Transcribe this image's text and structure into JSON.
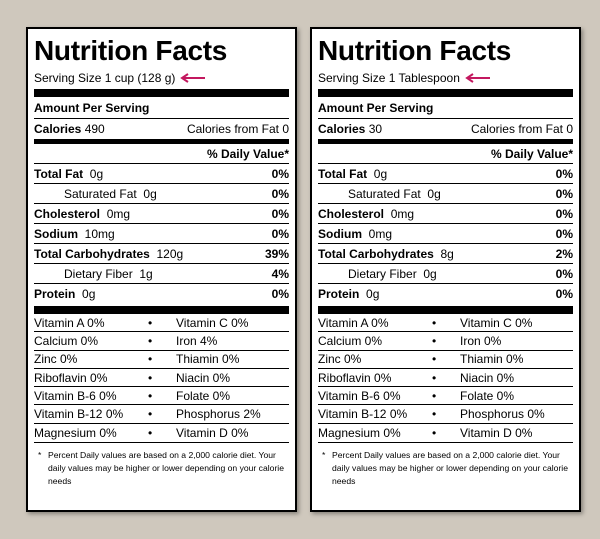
{
  "colors": {
    "arrow": "#c3185f",
    "background": "#cfc8bd"
  },
  "labels": [
    {
      "title": "Nutrition Facts",
      "serving_size": "Serving Size 1 cup (128 g)",
      "amount_per_serving": "Amount Per Serving",
      "calories_label": "Calories",
      "calories_value": "490",
      "calories_from_fat": "Calories from Fat 0",
      "daily_value_header": "% Daily Value*",
      "nutrients": [
        {
          "name": "Total Fat",
          "amount": "0g",
          "percent": "0%",
          "bold": true
        },
        {
          "name": "Saturated Fat",
          "amount": "0g",
          "percent": "0%",
          "bold": false
        },
        {
          "name": "Cholesterol",
          "amount": "0mg",
          "percent": "0%",
          "bold": true
        },
        {
          "name": "Sodium",
          "amount": "10mg",
          "percent": "0%",
          "bold": true
        },
        {
          "name": "Total Carbohydrates",
          "amount": "120g",
          "percent": "39%",
          "bold": true
        },
        {
          "name": "Dietary Fiber",
          "amount": "1g",
          "percent": "4%",
          "bold": false
        },
        {
          "name": "Protein",
          "amount": "0g",
          "percent": "0%",
          "bold": true
        }
      ],
      "vitamins": [
        {
          "left": "Vitamin A  0%",
          "right": "Vitamin C  0%"
        },
        {
          "left": "Calcium  0%",
          "right": "Iron  4%"
        },
        {
          "left": "Zinc  0%",
          "right": "Thiamin  0%"
        },
        {
          "left": "Riboflavin  0%",
          "right": "Niacin  0%"
        },
        {
          "left": "Vitamin B-6  0%",
          "right": "Folate  0%"
        },
        {
          "left": "Vitamin B-12  0%",
          "right": "Phosphorus  2%"
        },
        {
          "left": "Magnesium  0%",
          "right": "Vitamin D  0%"
        }
      ],
      "bullet": "•",
      "footnote_asterisk": "*",
      "footnote": "Percent Daily values are based on a 2,000 calorie diet.  Your daily values may be higher or lower depending on your calorie needs"
    },
    {
      "title": "Nutrition Facts",
      "serving_size": "Serving Size 1 Tablespoon",
      "amount_per_serving": "Amount Per Serving",
      "calories_label": "Calories",
      "calories_value": "30",
      "calories_from_fat": "Calories from Fat 0",
      "daily_value_header": "% Daily Value*",
      "nutrients": [
        {
          "name": "Total Fat",
          "amount": "0g",
          "percent": "0%",
          "bold": true
        },
        {
          "name": "Saturated Fat",
          "amount": "0g",
          "percent": "0%",
          "bold": false
        },
        {
          "name": "Cholesterol",
          "amount": "0mg",
          "percent": "0%",
          "bold": true
        },
        {
          "name": "Sodium",
          "amount": "0mg",
          "percent": "0%",
          "bold": true
        },
        {
          "name": "Total Carbohydrates",
          "amount": "8g",
          "percent": "2%",
          "bold": true
        },
        {
          "name": "Dietary Fiber",
          "amount": "0g",
          "percent": "0%",
          "bold": false
        },
        {
          "name": "Protein",
          "amount": "0g",
          "percent": "0%",
          "bold": true
        }
      ],
      "vitamins": [
        {
          "left": "Vitamin A  0%",
          "right": "Vitamin C  0%"
        },
        {
          "left": "Calcium  0%",
          "right": "Iron  0%"
        },
        {
          "left": "Zinc  0%",
          "right": "Thiamin  0%"
        },
        {
          "left": "Riboflavin  0%",
          "right": "Niacin  0%"
        },
        {
          "left": "Vitamin B-6  0%",
          "right": "Folate  0%"
        },
        {
          "left": "Vitamin B-12  0%",
          "right": "Phosphorus  0%"
        },
        {
          "left": "Magnesium  0%",
          "right": "Vitamin D  0%"
        }
      ],
      "bullet": "•",
      "footnote_asterisk": "*",
      "footnote": "Percent Daily values are based on a 2,000 calorie diet.  Your daily values may be higher or lower depending on your calorie needs"
    }
  ]
}
